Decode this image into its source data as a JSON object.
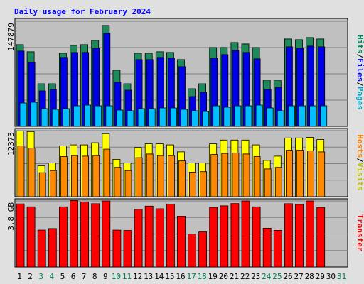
{
  "chart_data": {
    "type": "bar",
    "title": "Daily usage for February 2024",
    "title_color": "#0000ff",
    "categories": [
      "1",
      "2",
      "3",
      "4",
      "5",
      "6",
      "7",
      "8",
      "9",
      "10",
      "11",
      "12",
      "13",
      "14",
      "15",
      "16",
      "17",
      "18",
      "19",
      "20",
      "21",
      "22",
      "23",
      "24",
      "25",
      "26",
      "27",
      "28",
      "29",
      "30",
      "31"
    ],
    "weekend_days": [
      "3",
      "4",
      "10",
      "11",
      "17",
      "18",
      "24",
      "25",
      "31"
    ],
    "day_label_color": "#000000",
    "weekend_label_color": "#00805c",
    "grid": true,
    "panels": [
      {
        "name": "hits-files-pages",
        "max_label": "147879",
        "ylim": [
          0,
          147879
        ],
        "ylabel_parts": [
          {
            "text": "Hits",
            "color": "#00805c"
          },
          {
            "text": "/",
            "color": "#000000"
          },
          {
            "text": "Files",
            "color": "#0000ff"
          },
          {
            "text": "/",
            "color": "#000000"
          },
          {
            "text": "Pages",
            "color": "#00a0c0"
          }
        ],
        "series": [
          {
            "name": "Hits",
            "color": "#1e8a5c",
            "values": [
              115000,
              105000,
              60000,
              60000,
              103000,
              114000,
              115000,
              121000,
              142000,
              79000,
              60000,
              103000,
              103000,
              105000,
              104000,
              94000,
              53000,
              60000,
              111000,
              111000,
              118000,
              116000,
              111000,
              65000,
              65000,
              123000,
              122000,
              125000,
              123000,
              0,
              0
            ]
          },
          {
            "name": "Files",
            "color": "#0000e8",
            "values": [
              106000,
              90000,
              50000,
              52000,
              97000,
              104000,
              104000,
              110000,
              131000,
              62000,
              51000,
              94000,
              94000,
              97000,
              96000,
              84000,
              42000,
              48000,
              96000,
              101000,
              107000,
              104000,
              95000,
              52000,
              55000,
              112000,
              110000,
              113000,
              112000,
              0,
              0
            ]
          },
          {
            "name": "Pages",
            "color": "#00c0ff",
            "values": [
              33000,
              34000,
              25000,
              24000,
              25000,
              29000,
              30000,
              29000,
              29000,
              23000,
              22000,
              25000,
              25000,
              26000,
              26000,
              24000,
              22000,
              21000,
              29000,
              27000,
              29000,
              29000,
              30000,
              26000,
              22000,
              29000,
              29000,
              29000,
              29000,
              0,
              0
            ]
          }
        ]
      },
      {
        "name": "hosts-visits",
        "max_label": "12373",
        "ylim": [
          0,
          12373
        ],
        "ylabel_parts": [
          {
            "text": "Hosts",
            "color": "#ff8000"
          },
          {
            "text": "/",
            "color": "#000000"
          },
          {
            "text": "Visits",
            "color": "#c0c000"
          }
        ],
        "series": [
          {
            "name": "Visits",
            "color": "#ffff00",
            "values": [
              12300,
              12200,
              5800,
              6300,
              9500,
              9700,
              9700,
              10100,
              11800,
              7000,
              6300,
              9200,
              9900,
              9900,
              9700,
              8400,
              6300,
              6300,
              9900,
              10600,
              10600,
              10600,
              9700,
              6800,
              7600,
              11000,
              11000,
              11100,
              10700,
              0,
              0
            ]
          },
          {
            "name": "Hosts",
            "color": "#ff8800",
            "values": [
              9500,
              9100,
              4500,
              4900,
              7500,
              7700,
              7600,
              7700,
              8900,
              5500,
              4900,
              7300,
              8000,
              7700,
              7700,
              6700,
              4600,
              4700,
              7900,
              8100,
              8200,
              8000,
              7500,
              5200,
              5500,
              8700,
              8700,
              8600,
              8400,
              0,
              0
            ]
          }
        ]
      },
      {
        "name": "transfer",
        "max_label": "3.8 GB",
        "ylim": [
          0,
          3.8
        ],
        "ylabel_parts": [
          {
            "text": "Transfer",
            "color": "#ff0000"
          }
        ],
        "series": [
          {
            "name": "Transfer",
            "color": "#ff0000",
            "values": [
              3.63,
              3.46,
              2.12,
              2.21,
              3.46,
              3.82,
              3.74,
              3.64,
              3.8,
              2.12,
              2.1,
              3.32,
              3.5,
              3.35,
              3.61,
              2.92,
              1.9,
              2.02,
              3.43,
              3.52,
              3.65,
              3.8,
              3.46,
              2.23,
              2.11,
              3.64,
              3.6,
              3.8,
              3.43,
              0,
              0
            ]
          }
        ]
      }
    ]
  }
}
